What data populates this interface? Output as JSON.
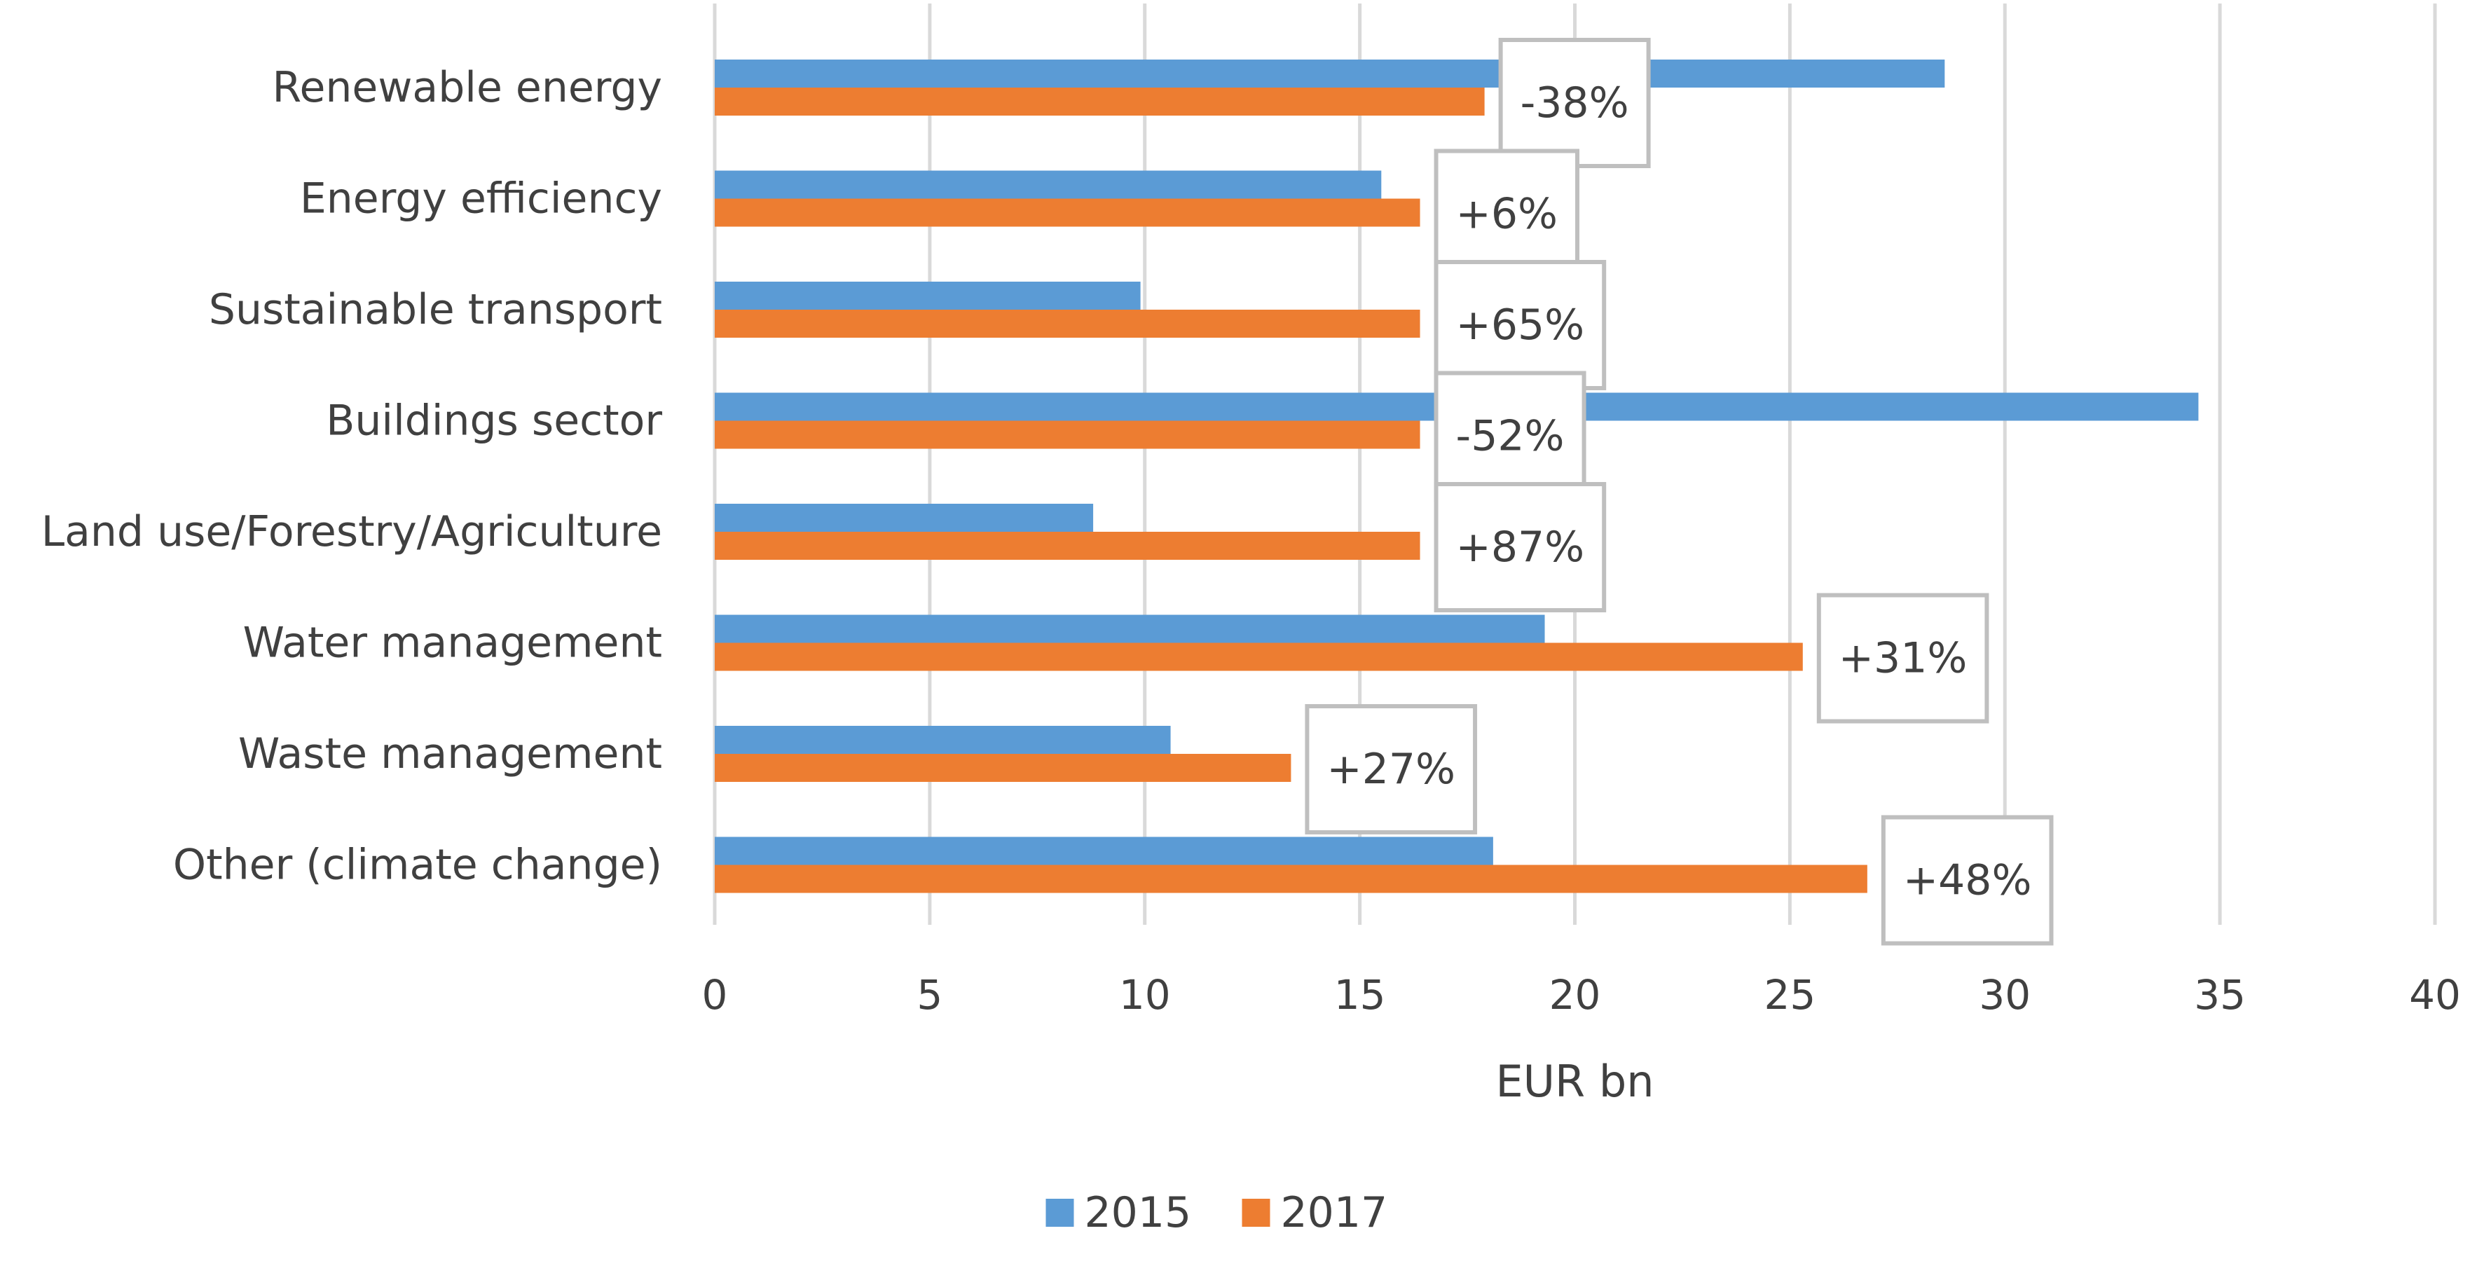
{
  "chart_data": {
    "type": "bar",
    "orientation": "horizontal",
    "categories": [
      "Renewable energy",
      "Energy efficiency",
      "Sustainable transport",
      "Buildings sector",
      "Land use/Forestry/Agriculture",
      "Water management",
      "Waste management",
      "Other (climate change)"
    ],
    "series": [
      {
        "name": "2015",
        "color": "#5b9bd5",
        "values": [
          28.6,
          15.5,
          9.9,
          34.5,
          8.8,
          19.3,
          10.6,
          18.1
        ]
      },
      {
        "name": "2017",
        "color": "#ed7d31",
        "values": [
          17.9,
          16.4,
          16.4,
          16.4,
          16.4,
          25.3,
          13.4,
          26.8
        ]
      }
    ],
    "annotations": [
      "-38%",
      "+6%",
      "+65%",
      "-52%",
      "+87%",
      "+31%",
      "+27%",
      "+48%"
    ],
    "title": "",
    "xlabel": "EUR bn",
    "ylabel": "",
    "xlim": [
      0,
      40
    ],
    "xticks": [
      0,
      5,
      10,
      15,
      20,
      25,
      30,
      35,
      40
    ],
    "grid": true,
    "legend_position": "bottom"
  }
}
